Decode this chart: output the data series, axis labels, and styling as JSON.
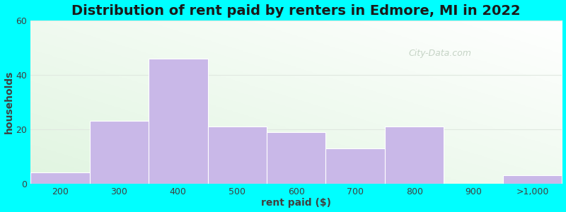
{
  "title": "Distribution of rent paid by renters in Edmore, MI in 2022",
  "xlabel": "rent paid ($)",
  "ylabel": "households",
  "categories": [
    "200",
    "300",
    "400",
    "500",
    "600",
    "700",
    "800",
    "900",
    ">1,000"
  ],
  "values": [
    4,
    23,
    46,
    21,
    19,
    13,
    21,
    0,
    3
  ],
  "bar_color": "#c9b8e8",
  "bar_edge_color": "#c9b8e8",
  "ylim": [
    0,
    60
  ],
  "yticks": [
    0,
    20,
    40,
    60
  ],
  "title_fontsize": 14,
  "axis_label_fontsize": 10,
  "tick_fontsize": 9,
  "outer_bg_color": "#00ffff",
  "plot_bg_color": "#f0f8f0",
  "watermark_text": "City-Data.com",
  "watermark_color": "#c0cfc0",
  "grid_color": "#e0e8e0",
  "text_color": "#404040",
  "title_color": "#1a1a1a"
}
